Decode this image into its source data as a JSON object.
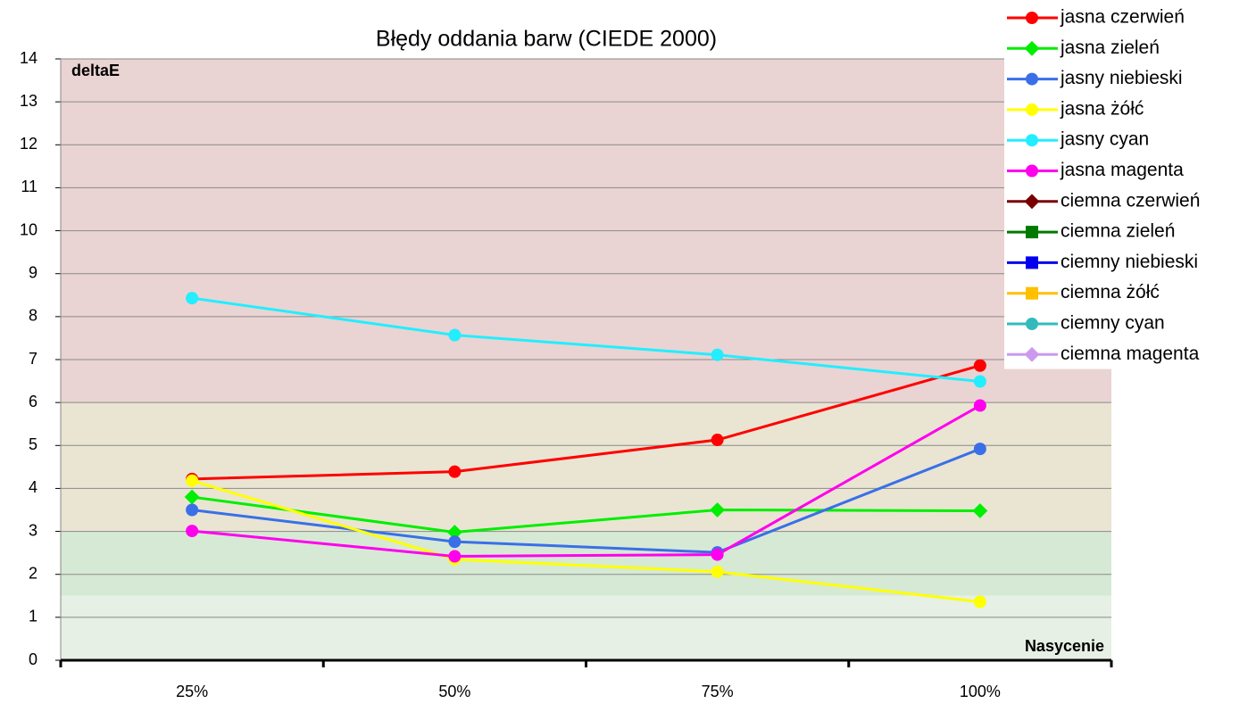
{
  "chart_data": {
    "type": "line",
    "title": "Błędy oddania barw (CIEDE 2000)",
    "y_label": "deltaE",
    "x_label": "Nasycenie",
    "categories": [
      "25%",
      "50%",
      "75%",
      "100%"
    ],
    "ylim": [
      0,
      14
    ],
    "yticks": [
      0,
      1,
      2,
      3,
      4,
      5,
      6,
      7,
      8,
      9,
      10,
      11,
      12,
      13,
      14
    ],
    "grid": true,
    "legend": "upper right",
    "bands": [
      {
        "from": 6,
        "to": 14,
        "color": "#ead3d3"
      },
      {
        "from": 3,
        "to": 6,
        "color": "#e9e5d2"
      },
      {
        "from": 1.5,
        "to": 3,
        "color": "#d6e9d4"
      },
      {
        "from": 0,
        "to": 1.5,
        "color": "#e6f0e4"
      }
    ],
    "series": [
      {
        "name": "jasna czerwień",
        "color": "#ff0000",
        "marker": "circle",
        "values": [
          4.22,
          4.39,
          5.13,
          6.86
        ]
      },
      {
        "name": "jasna zieleń",
        "color": "#00ee00",
        "marker": "diamond",
        "values": [
          3.8,
          2.98,
          3.5,
          3.48
        ]
      },
      {
        "name": "jasny niebieski",
        "color": "#3a6fe8",
        "marker": "circle",
        "values": [
          3.5,
          2.76,
          2.51,
          4.92
        ]
      },
      {
        "name": "jasna żółć",
        "color": "#ffff00",
        "marker": "circle",
        "values": [
          4.18,
          2.35,
          2.06,
          1.36
        ]
      },
      {
        "name": "jasny cyan",
        "color": "#22eeff",
        "marker": "circle",
        "values": [
          8.43,
          7.57,
          7.11,
          6.49
        ]
      },
      {
        "name": "jasna magenta",
        "color": "#ff00ee",
        "marker": "circle",
        "values": [
          3.01,
          2.42,
          2.46,
          5.93
        ]
      },
      {
        "name": "ciemna czerwień",
        "color": "#7a0000",
        "marker": "diamond",
        "values": [
          null,
          null,
          null,
          null
        ]
      },
      {
        "name": "ciemna zieleń",
        "color": "#007a00",
        "marker": "square",
        "values": [
          null,
          null,
          null,
          null
        ]
      },
      {
        "name": "ciemny niebieski",
        "color": "#0000ee",
        "marker": "square",
        "values": [
          null,
          null,
          null,
          null
        ]
      },
      {
        "name": "ciemna żółć",
        "color": "#ffc000",
        "marker": "square",
        "values": [
          null,
          null,
          null,
          null
        ]
      },
      {
        "name": "ciemny cyan",
        "color": "#33bbbb",
        "marker": "circle",
        "values": [
          null,
          null,
          null,
          null
        ]
      },
      {
        "name": "ciemna magenta",
        "color": "#cc99ee",
        "marker": "diamond",
        "values": [
          null,
          null,
          null,
          null
        ]
      }
    ]
  }
}
